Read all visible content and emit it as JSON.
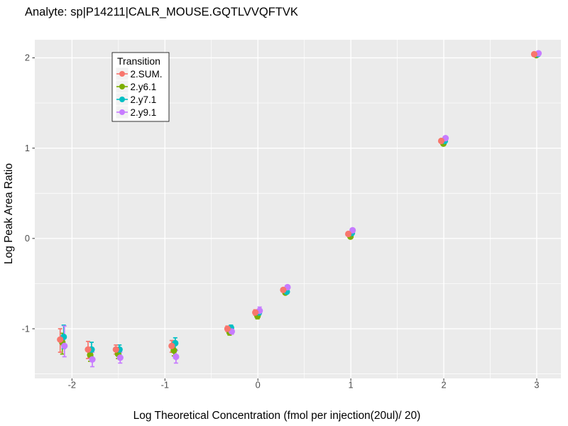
{
  "chart_data": {
    "type": "scatter",
    "title": "Analyte: sp|P14211|CALR_MOUSE.GQTLVVQFTVK",
    "xlabel": "Log Theoretical Concentration (fmol per injection(20ul)/ 20)",
    "ylabel": "Log Peak Area Ratio",
    "xlim": [
      -2.4,
      3.26
    ],
    "ylim": [
      -1.55,
      2.2
    ],
    "x_ticks": [
      -2,
      -1,
      0,
      1,
      2,
      3
    ],
    "y_ticks": [
      -1,
      0,
      1,
      2
    ],
    "minor_x": [
      -1.5,
      -0.5,
      0.5,
      1.5,
      2.5
    ],
    "minor_y": [
      -1.5,
      -0.5,
      0.5,
      1.5
    ],
    "grid": true,
    "legend": {
      "title": "Transition",
      "position": "top-left-inside"
    },
    "colors": {
      "panel_bg": "#EBEBEB",
      "grid_major": "#FFFFFF",
      "grid_minor": "#FFFFFF",
      "tick_label": "#4D4D4D",
      "tick_mark": "#333333",
      "axis_title": "#000000",
      "legend_bg": "#FFFFFF",
      "legend_border": "#000000",
      "legend_key_bg": "#F2F2F2"
    },
    "draw_order": [
      "2.y6.1",
      "2.y7.1",
      "2.y9.1",
      "2.SUM."
    ],
    "series": [
      {
        "name": "2.SUM.",
        "color": "#F8766D",
        "x_offset": -0.027,
        "points": [
          {
            "x": -2.1,
            "y": -1.12,
            "ymin": -1.26,
            "ymax": -1.0
          },
          {
            "x": -1.8,
            "y": -1.23,
            "ymin": -1.33,
            "ymax": -1.14
          },
          {
            "x": -1.5,
            "y": -1.23,
            "ymin": -1.28,
            "ymax": -1.18
          },
          {
            "x": -0.9,
            "y": -1.19,
            "ymin": -1.26,
            "ymax": -1.13
          },
          {
            "x": -0.3,
            "y": -1.0,
            "ymin": -1.03,
            "ymax": -0.97
          },
          {
            "x": 0.0,
            "y": -0.82,
            "ymin": -0.85,
            "ymax": -0.79
          },
          {
            "x": 0.3,
            "y": -0.57,
            "ymin": -0.59,
            "ymax": -0.55
          },
          {
            "x": 1.0,
            "y": 0.05,
            "ymin": 0.04,
            "ymax": 0.06
          },
          {
            "x": 2.0,
            "y": 1.08,
            "ymin": 1.07,
            "ymax": 1.09
          },
          {
            "x": 3.0,
            "y": 2.04,
            "ymin": 2.03,
            "ymax": 2.05
          }
        ]
      },
      {
        "name": "2.y6.1",
        "color": "#7CAE00",
        "x_offset": -0.004,
        "points": [
          {
            "x": -2.1,
            "y": -1.15,
            "ymin": -1.28,
            "ymax": -1.05
          },
          {
            "x": -1.8,
            "y": -1.29,
            "ymin": -1.36,
            "ymax": -1.21
          },
          {
            "x": -1.5,
            "y": -1.28,
            "ymin": -1.33,
            "ymax": -1.23
          },
          {
            "x": -0.9,
            "y": -1.24,
            "ymin": -1.3,
            "ymax": -1.18
          },
          {
            "x": -0.3,
            "y": -1.04,
            "ymin": -1.07,
            "ymax": -1.01
          },
          {
            "x": 0.0,
            "y": -0.86,
            "ymin": -0.89,
            "ymax": -0.83
          },
          {
            "x": 0.3,
            "y": -0.6,
            "ymin": -0.62,
            "ymax": -0.58
          },
          {
            "x": 1.0,
            "y": 0.02,
            "ymin": 0.01,
            "ymax": 0.03
          },
          {
            "x": 2.0,
            "y": 1.05,
            "ymin": 1.04,
            "ymax": 1.06
          },
          {
            "x": 3.0,
            "y": 2.03,
            "ymin": 2.02,
            "ymax": 2.04
          }
        ]
      },
      {
        "name": "2.y7.1",
        "color": "#00BFC4",
        "x_offset": 0.011,
        "points": [
          {
            "x": -2.1,
            "y": -1.09,
            "ymin": -1.22,
            "ymax": -0.96
          },
          {
            "x": -1.8,
            "y": -1.23,
            "ymin": -1.31,
            "ymax": -1.15
          },
          {
            "x": -1.5,
            "y": -1.23,
            "ymin": -1.28,
            "ymax": -1.18
          },
          {
            "x": -0.9,
            "y": -1.16,
            "ymin": -1.23,
            "ymax": -1.1
          },
          {
            "x": -0.3,
            "y": -0.99,
            "ymin": -1.02,
            "ymax": -0.96
          },
          {
            "x": 0.0,
            "y": -0.82,
            "ymin": -0.85,
            "ymax": -0.79
          },
          {
            "x": 0.3,
            "y": -0.59,
            "ymin": -0.61,
            "ymax": -0.57
          },
          {
            "x": 1.0,
            "y": 0.06,
            "ymin": 0.05,
            "ymax": 0.07
          },
          {
            "x": 2.0,
            "y": 1.08,
            "ymin": 1.07,
            "ymax": 1.09
          },
          {
            "x": 3.0,
            "y": 2.04,
            "ymin": 2.03,
            "ymax": 2.05
          }
        ]
      },
      {
        "name": "2.y9.1",
        "color": "#C77CFF",
        "x_offset": 0.019,
        "points": [
          {
            "x": -2.1,
            "y": -1.19,
            "ymin": -1.31,
            "ymax": -0.97
          },
          {
            "x": -1.8,
            "y": -1.34,
            "ymin": -1.42,
            "ymax": -1.26
          },
          {
            "x": -1.5,
            "y": -1.32,
            "ymin": -1.38,
            "ymax": -1.26
          },
          {
            "x": -0.9,
            "y": -1.31,
            "ymin": -1.38,
            "ymax": -1.24
          },
          {
            "x": -0.3,
            "y": -1.03,
            "ymin": -1.06,
            "ymax": -1.0
          },
          {
            "x": 0.0,
            "y": -0.8,
            "ymin": -0.84,
            "ymax": -0.76
          },
          {
            "x": 0.3,
            "y": -0.54,
            "ymin": -0.56,
            "ymax": -0.52
          },
          {
            "x": 1.0,
            "y": 0.09,
            "ymin": 0.08,
            "ymax": 0.1
          },
          {
            "x": 2.0,
            "y": 1.11,
            "ymin": 1.1,
            "ymax": 1.12
          },
          {
            "x": 3.0,
            "y": 2.05,
            "ymin": 2.04,
            "ymax": 2.06
          }
        ]
      }
    ]
  }
}
